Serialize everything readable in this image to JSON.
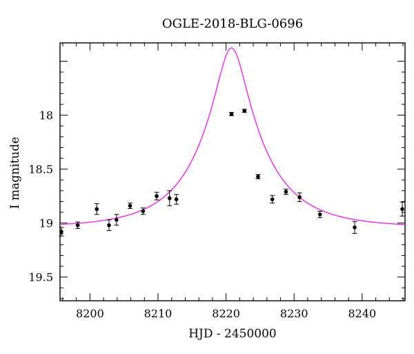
{
  "chart_data": {
    "type": "scatter",
    "title": "OGLE-2018-BLG-0696",
    "xlabel": "HJD - 2450000",
    "ylabel": "I magnitude",
    "xlim": [
      8195.6,
      8246.3
    ],
    "ylim": [
      19.72,
      17.33
    ],
    "y_inverted": true,
    "x_ticks": [
      8200,
      8210,
      8220,
      8230,
      8240
    ],
    "y_ticks": [
      18,
      18.5,
      19,
      19.5
    ],
    "x_tick_labels": [
      "8200",
      "8210",
      "8220",
      "8230",
      "8240"
    ],
    "y_tick_labels": [
      "18",
      "18.5",
      "19",
      "19.5"
    ],
    "grid": false,
    "colors": {
      "model": "#ff00ff",
      "points": "#000000"
    },
    "series": [
      {
        "kind": "points_with_errorbars",
        "points": [
          {
            "x": 8195.8,
            "y": 19.08,
            "err": 0.04
          },
          {
            "x": 8198.2,
            "y": 19.02,
            "err": 0.03
          },
          {
            "x": 8201.0,
            "y": 18.87,
            "err": 0.05
          },
          {
            "x": 8202.8,
            "y": 19.02,
            "err": 0.05
          },
          {
            "x": 8203.9,
            "y": 18.97,
            "err": 0.05
          },
          {
            "x": 8205.9,
            "y": 18.84,
            "err": 0.025
          },
          {
            "x": 8207.8,
            "y": 18.89,
            "err": 0.03
          },
          {
            "x": 8209.8,
            "y": 18.75,
            "err": 0.035
          },
          {
            "x": 8211.7,
            "y": 18.77,
            "err": 0.07
          },
          {
            "x": 8212.7,
            "y": 18.78,
            "err": 0.045
          },
          {
            "x": 8220.8,
            "y": 17.99,
            "err": 0.015
          },
          {
            "x": 8222.7,
            "y": 17.96,
            "err": 0.015
          },
          {
            "x": 8224.7,
            "y": 18.57,
            "err": 0.02
          },
          {
            "x": 8226.8,
            "y": 18.78,
            "err": 0.035
          },
          {
            "x": 8228.8,
            "y": 18.71,
            "err": 0.025
          },
          {
            "x": 8230.8,
            "y": 18.76,
            "err": 0.04
          },
          {
            "x": 8233.8,
            "y": 18.92,
            "err": 0.03
          },
          {
            "x": 8238.9,
            "y": 19.04,
            "err": 0.055
          },
          {
            "x": 8245.9,
            "y": 18.87,
            "err": 0.065
          }
        ]
      },
      {
        "kind": "model_curve",
        "model": {
          "t0": 8220.8,
          "u0": 0.22,
          "tE": 9.5,
          "baseline": 19.04
        }
      }
    ]
  }
}
